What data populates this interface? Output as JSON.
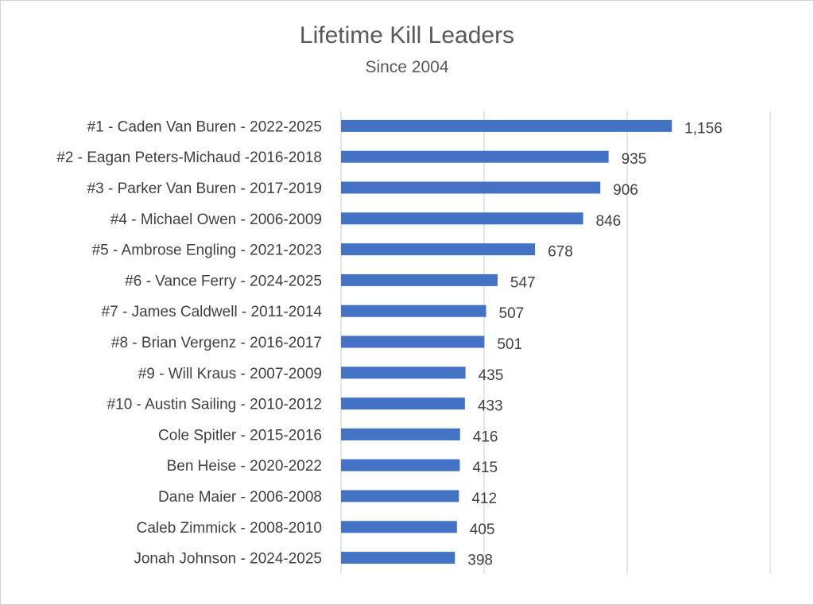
{
  "chart_data": {
    "type": "bar",
    "orientation": "horizontal",
    "title": "Lifetime Kill Leaders",
    "subtitle": "Since 2004",
    "xlabel": "",
    "ylabel": "",
    "xlim": [
      0,
      1500
    ],
    "gridlines": [
      0,
      500,
      1000,
      1500
    ],
    "grid": true,
    "bar_color": "#4472C4",
    "categories": [
      "#1 - Caden Van Buren - 2022-2025",
      "#2 - Eagan Peters-Michaud -2016-2018",
      "#3 - Parker Van Buren - 2017-2019",
      "#4 - Michael Owen - 2006-2009",
      "#5 - Ambrose Engling - 2021-2023",
      "#6 - Vance Ferry - 2024-2025",
      "#7 - James Caldwell - 2011-2014",
      "#8 - Brian Vergenz - 2016-2017",
      "#9 - Will Kraus - 2007-2009",
      "#10 - Austin Sailing - 2010-2012",
      "Cole Spitler - 2015-2016",
      "Ben Heise - 2020-2022",
      "Dane Maier - 2006-2008",
      "Caleb Zimmick - 2008-2010",
      "Jonah Johnson - 2024-2025"
    ],
    "values": [
      1156,
      935,
      906,
      846,
      678,
      547,
      507,
      501,
      435,
      433,
      416,
      415,
      412,
      405,
      398
    ],
    "labels": [
      "1,156",
      "935",
      "906",
      "846",
      "678",
      "547",
      "507",
      "501",
      "435",
      "433",
      "416",
      "415",
      "412",
      "405",
      "398"
    ]
  }
}
